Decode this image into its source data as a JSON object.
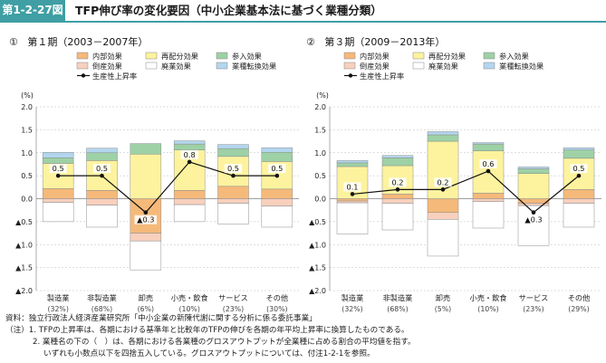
{
  "header": {
    "figure_number": "第1-2-27図",
    "title": "TFP伸び率の変化要因（中小企業基本法に基づく業種分類）"
  },
  "panels": [
    {
      "number": "①",
      "title": "第１期（2003－2007年）"
    },
    {
      "number": "②",
      "title": "第３期（2009－2013年）"
    }
  ],
  "notes": {
    "source": "資料：独立行政法人経済産業研究所「中小企業の新陳代謝に関する分析に係る委託事業」",
    "note1": "（注）1. TFPの上昇率は、各期における基準年と比較年のTFPの伸びを各期の年平均上昇率に換算したものである。",
    "note2": "2. 業種名の下の（　）は、各期における各業種のグロスアウトプットが全業種に占める割合の平均値を指す。",
    "note3": "いずれも小数点以下を四捨五入している。グロスアウトプットについては、付注1-2-1を参照。"
  },
  "colors": {
    "内部効果": "#f5b97a",
    "再配分効果": "#fdf39e",
    "参入効果": "#9ed1a6",
    "倒産効果": "#f8d0bd",
    "廃業効果": "#ffffff",
    "業種転換効果": "#b3d6ee",
    "line": "#111111",
    "accent": "#3f9fa4"
  },
  "chart_data": [
    {
      "type": "bar",
      "stacked": true,
      "title": "第１期（2003－2007年）",
      "ylabel": "(%)",
      "ylim": [
        -2.0,
        2.0
      ],
      "yticks": [
        "▲2.0",
        "▲1.5",
        "▲1.0",
        "▲0.5",
        "0.0",
        "0.5",
        "1.0",
        "1.5",
        "2.0"
      ],
      "categories": [
        "製造業",
        "非製造業",
        "卸売",
        "小売・飲食",
        "サービス",
        "その他"
      ],
      "shares": [
        "(32%)",
        "(68%)",
        "(6%)",
        "(10%)",
        "(23%)",
        "(30%)"
      ],
      "legend": [
        "内部効果",
        "再配分効果",
        "参入効果",
        "倒産効果",
        "廃業効果",
        "業種転換効果",
        "生産性上昇率"
      ],
      "series": [
        {
          "name": "内部効果",
          "values": [
            0.22,
            0.18,
            -0.75,
            0.18,
            0.27,
            0.21
          ]
        },
        {
          "name": "再配分効果",
          "values": [
            0.55,
            0.65,
            0.97,
            0.88,
            0.65,
            0.6
          ]
        },
        {
          "name": "参入効果",
          "values": [
            0.12,
            0.17,
            0.23,
            0.13,
            0.17,
            0.2
          ]
        },
        {
          "name": "倒産効果",
          "values": [
            -0.08,
            -0.14,
            -0.17,
            -0.13,
            -0.1,
            -0.16
          ]
        },
        {
          "name": "廃業効果",
          "values": [
            -0.42,
            -0.48,
            -0.63,
            -0.37,
            -0.45,
            -0.46
          ]
        },
        {
          "name": "業種転換効果",
          "values": [
            0.12,
            0.1,
            0.0,
            0.07,
            0.09,
            0.1
          ]
        }
      ],
      "line": {
        "name": "生産性上昇率",
        "values": [
          0.5,
          0.5,
          -0.3,
          0.8,
          0.5,
          0.5
        ],
        "labels": [
          "0.5",
          "0.5",
          "▲0.3",
          "0.8",
          "0.5",
          "0.5"
        ]
      }
    },
    {
      "type": "bar",
      "stacked": true,
      "title": "第３期（2009－2013年）",
      "ylabel": "(%)",
      "ylim": [
        -2.0,
        2.0
      ],
      "yticks": [
        "▲2.0",
        "▲1.5",
        "▲1.0",
        "▲0.5",
        "0.0",
        "0.5",
        "1.0",
        "1.5",
        "2.0"
      ],
      "categories": [
        "製造業",
        "非製造業",
        "卸売",
        "小売・飲食",
        "サービス",
        "その他"
      ],
      "shares": [
        "(32%)",
        "(68%)",
        "(5%)",
        "(10%)",
        "(23%)",
        "(29%)"
      ],
      "legend": [
        "内部効果",
        "再配分効果",
        "参入効果",
        "倒産効果",
        "廃業効果",
        "業種転換効果",
        "生産性上昇率"
      ],
      "series": [
        {
          "name": "内部効果",
          "values": [
            -0.05,
            0.1,
            -0.3,
            0.12,
            -0.1,
            0.2
          ]
        },
        {
          "name": "再配分効果",
          "values": [
            0.7,
            0.62,
            1.25,
            0.92,
            0.55,
            0.68
          ]
        },
        {
          "name": "参入効果",
          "values": [
            0.08,
            0.17,
            0.14,
            0.15,
            0.1,
            0.18
          ]
        },
        {
          "name": "倒産効果",
          "values": [
            -0.04,
            -0.1,
            -0.15,
            -0.06,
            -0.05,
            -0.1
          ]
        },
        {
          "name": "廃業効果",
          "values": [
            -0.68,
            -0.58,
            -0.8,
            -0.58,
            -0.87,
            -0.52
          ]
        },
        {
          "name": "業種転換効果",
          "values": [
            0.05,
            0.05,
            0.07,
            0.03,
            0.04,
            0.05
          ]
        }
      ],
      "line": {
        "name": "生産性上昇率",
        "values": [
          0.1,
          0.2,
          0.2,
          0.6,
          -0.3,
          0.5
        ],
        "labels": [
          "0.1",
          "0.2",
          "0.2",
          "0.6",
          "▲0.3",
          "0.5"
        ]
      }
    }
  ]
}
